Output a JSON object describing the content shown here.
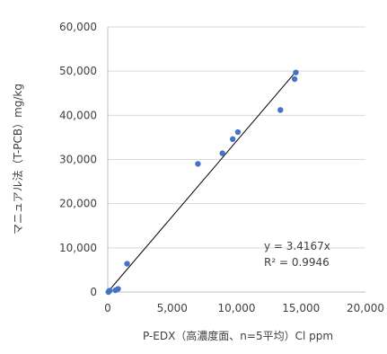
{
  "chart_data": {
    "type": "scatter",
    "xlabel": "P-EDX（高濃度面、n=5平均）Cl ppm",
    "ylabel": "マニュアル法（T-PCB）mg/kg",
    "xlim": [
      0,
      20000
    ],
    "ylim": [
      0,
      60000
    ],
    "x_ticks": [
      0,
      5000,
      10000,
      15000,
      20000
    ],
    "x_tick_labels": [
      "0",
      "5,000",
      "10,000",
      "15,000",
      "20,000"
    ],
    "y_ticks": [
      0,
      10000,
      20000,
      30000,
      40000,
      50000,
      60000
    ],
    "y_tick_labels": [
      "0",
      "10,000",
      "20,000",
      "30,000",
      "40,000",
      "50,000",
      "60,000"
    ],
    "grid": "horizontal",
    "points": [
      {
        "x": 50,
        "y": 0
      },
      {
        "x": 100,
        "y": 200
      },
      {
        "x": 150,
        "y": 300
      },
      {
        "x": 600,
        "y": 400
      },
      {
        "x": 800,
        "y": 700
      },
      {
        "x": 1500,
        "y": 6400
      },
      {
        "x": 7000,
        "y": 29000
      },
      {
        "x": 8900,
        "y": 31400
      },
      {
        "x": 9700,
        "y": 34600
      },
      {
        "x": 10100,
        "y": 36200
      },
      {
        "x": 13400,
        "y": 41200
      },
      {
        "x": 14500,
        "y": 48200
      },
      {
        "x": 14600,
        "y": 49700
      }
    ],
    "trendline": {
      "slope": 3.4167,
      "x_range": [
        0,
        14500
      ]
    },
    "equation": "y = 3.4167x",
    "r2": "R² = 0.9946",
    "colors": {
      "points": "#4472c4",
      "trendline": "#000000",
      "grid": "#d9d9d9",
      "text": "#404040"
    }
  }
}
